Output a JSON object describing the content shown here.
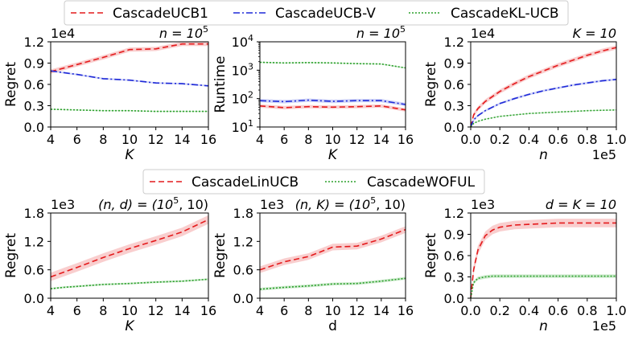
{
  "colors": {
    "red": "#e41a1c",
    "red_band": "#f4a6a6",
    "blue": "#1f2ad8",
    "blue_band": "#a9b0f0",
    "green": "#2ca02c",
    "green_band": "#a8dba8"
  },
  "legend_top": [
    {
      "label": "CascadeUCB1",
      "color_key": "red",
      "dash": "7,4"
    },
    {
      "label": "CascadeUCB-V",
      "color_key": "blue",
      "dash": "8,3,2,3"
    },
    {
      "label": "CascadeKL-UCB",
      "color_key": "green",
      "dash": "2,2"
    }
  ],
  "legend_bottom": [
    {
      "label": "CascadeLinUCB",
      "color_key": "red",
      "dash": "7,4"
    },
    {
      "label": "CascadeWOFUL",
      "color_key": "green",
      "dash": "2,2"
    }
  ],
  "chart_data": [
    {
      "type": "line",
      "title_math": [
        "n = 10",
        "5"
      ],
      "multiplier": "1e4",
      "xlabel": "K",
      "xlabel_italic": true,
      "ylabel": "Regret",
      "xlim": [
        4,
        16
      ],
      "ylim": [
        0,
        1.2
      ],
      "xticks": [
        4,
        6,
        8,
        10,
        12,
        14,
        16
      ],
      "yticks": [
        0.0,
        0.3,
        0.6,
        0.9,
        1.2
      ],
      "ytick_labels": [
        "0.0",
        "0.3",
        "0.6",
        "0.9",
        "1.2"
      ],
      "xtick_labels": [
        "4",
        "6",
        "8",
        "10",
        "12",
        "14",
        "16"
      ],
      "x": [
        4,
        6,
        8,
        10,
        12,
        14,
        16
      ],
      "series": [
        {
          "name": "CascadeUCB1",
          "color_key": "red",
          "dash": "7,4",
          "values": [
            0.78,
            0.88,
            0.98,
            1.09,
            1.1,
            1.17,
            1.17
          ],
          "band": 0.03
        },
        {
          "name": "CascadeUCB-V",
          "color_key": "blue",
          "dash": "8,3,2,3",
          "values": [
            0.79,
            0.74,
            0.68,
            0.66,
            0.62,
            0.61,
            0.58
          ],
          "band": 0.012
        },
        {
          "name": "CascadeKL-UCB",
          "color_key": "green",
          "dash": "2,2",
          "values": [
            0.25,
            0.24,
            0.23,
            0.23,
            0.22,
            0.22,
            0.22
          ],
          "band": 0.008
        }
      ]
    },
    {
      "type": "line",
      "title_math": [
        "n = 10",
        "5"
      ],
      "multiplier": "",
      "xlabel": "K",
      "xlabel_italic": true,
      "ylabel": "Runtime",
      "ylog": true,
      "xlim": [
        4,
        16
      ],
      "ylim": [
        10,
        10000
      ],
      "xticks": [
        4,
        6,
        8,
        10,
        12,
        14,
        16
      ],
      "xtick_labels": [
        "4",
        "6",
        "8",
        "10",
        "12",
        "14",
        "16"
      ],
      "yticks": [
        10,
        100,
        1000,
        10000
      ],
      "ytick_labels": [
        [
          "10",
          "1"
        ],
        [
          "10",
          "2"
        ],
        [
          "10",
          "3"
        ],
        [
          "10",
          "4"
        ]
      ],
      "x": [
        4,
        6,
        8,
        10,
        12,
        14,
        16
      ],
      "series": [
        {
          "name": "CascadeUCB1",
          "color_key": "red",
          "dash": "7,4",
          "values": [
            55,
            48,
            52,
            50,
            52,
            55,
            40
          ],
          "band_factor": 1.15
        },
        {
          "name": "CascadeUCB-V",
          "color_key": "blue",
          "dash": "8,3,2,3",
          "values": [
            85,
            78,
            88,
            80,
            85,
            85,
            62
          ],
          "band_factor": 1.15
        },
        {
          "name": "CascadeKL-UCB",
          "color_key": "green",
          "dash": "2,2",
          "values": [
            1900,
            1800,
            1850,
            1800,
            1700,
            1650,
            1200
          ],
          "band_factor": 1.05
        }
      ]
    },
    {
      "type": "line",
      "title_math": [
        "K = 10",
        ""
      ],
      "multiplier": "1e4",
      "xmultiplier": "1e5",
      "xlabel": "n",
      "xlabel_italic": true,
      "ylabel": "Regret",
      "xlim": [
        0,
        1.0
      ],
      "ylim": [
        0,
        1.2
      ],
      "xticks": [
        0.0,
        0.2,
        0.4,
        0.6,
        0.8,
        1.0
      ],
      "xtick_labels": [
        "0.0",
        "0.2",
        "0.4",
        "0.6",
        "0.8",
        "1.0"
      ],
      "yticks": [
        0.0,
        0.3,
        0.6,
        0.9,
        1.2
      ],
      "ytick_labels": [
        "0.0",
        "0.3",
        "0.6",
        "0.9",
        "1.2"
      ],
      "x": [
        0,
        0.02,
        0.05,
        0.1,
        0.2,
        0.3,
        0.4,
        0.5,
        0.6,
        0.7,
        0.8,
        0.9,
        1.0
      ],
      "series": [
        {
          "name": "CascadeUCB1",
          "color_key": "red",
          "dash": "7,4",
          "values": [
            0,
            0.17,
            0.26,
            0.36,
            0.5,
            0.61,
            0.71,
            0.79,
            0.87,
            0.94,
            1.01,
            1.07,
            1.12
          ],
          "band": 0.03
        },
        {
          "name": "CascadeUCB-V",
          "color_key": "blue",
          "dash": "8,3,2,3",
          "values": [
            0,
            0.1,
            0.16,
            0.23,
            0.33,
            0.4,
            0.46,
            0.51,
            0.55,
            0.59,
            0.62,
            0.65,
            0.67
          ],
          "band": 0.015
        },
        {
          "name": "CascadeKL-UCB",
          "color_key": "green",
          "dash": "2,2",
          "values": [
            0,
            0.05,
            0.08,
            0.11,
            0.15,
            0.17,
            0.19,
            0.2,
            0.21,
            0.22,
            0.23,
            0.235,
            0.24
          ],
          "band": 0.006
        }
      ]
    },
    {
      "type": "line",
      "title_math": [
        "(n, d) = (10",
        "5",
        ", 10)"
      ],
      "multiplier": "1e3",
      "xlabel": "K",
      "xlabel_italic": true,
      "ylabel": "Regret",
      "xlim": [
        4,
        16
      ],
      "ylim": [
        0,
        1.8
      ],
      "xticks": [
        4,
        6,
        8,
        10,
        12,
        14,
        16
      ],
      "xtick_labels": [
        "4",
        "6",
        "8",
        "10",
        "12",
        "14",
        "16"
      ],
      "yticks": [
        0.0,
        0.6,
        1.2,
        1.8
      ],
      "ytick_labels": [
        "0.0",
        "0.6",
        "1.2",
        "1.8"
      ],
      "x": [
        4,
        5,
        6,
        8,
        10,
        12,
        14,
        16
      ],
      "series": [
        {
          "name": "CascadeLinUCB",
          "color_key": "red",
          "dash": "7,4",
          "values": [
            0.45,
            0.55,
            0.65,
            0.86,
            1.05,
            1.22,
            1.4,
            1.66
          ],
          "band": 0.09
        },
        {
          "name": "CascadeWOFUL",
          "color_key": "green",
          "dash": "2,2",
          "values": [
            0.2,
            0.23,
            0.25,
            0.29,
            0.31,
            0.34,
            0.36,
            0.4
          ],
          "band": 0.02
        }
      ]
    },
    {
      "type": "line",
      "title_math": [
        "(n, K) = (10",
        "5",
        ", 10)"
      ],
      "multiplier": "1e3",
      "xlabel": "d",
      "xlabel_italic": false,
      "ylabel": "Regret",
      "xlim": [
        4,
        16
      ],
      "ylim": [
        0,
        1.8
      ],
      "xticks": [
        4,
        6,
        8,
        10,
        12,
        14,
        16
      ],
      "xtick_labels": [
        "4",
        "6",
        "8",
        "10",
        "12",
        "14",
        "16"
      ],
      "yticks": [
        0.0,
        0.6,
        1.2,
        1.8
      ],
      "ytick_labels": [
        "0.0",
        "0.6",
        "1.2",
        "1.8"
      ],
      "x": [
        4,
        6,
        8,
        10,
        12,
        14,
        16
      ],
      "series": [
        {
          "name": "CascadeLinUCB",
          "color_key": "red",
          "dash": "7,4",
          "values": [
            0.6,
            0.77,
            0.88,
            1.08,
            1.1,
            1.25,
            1.45
          ],
          "band": 0.07
        },
        {
          "name": "CascadeWOFUL",
          "color_key": "green",
          "dash": "2,2",
          "values": [
            0.19,
            0.23,
            0.26,
            0.3,
            0.31,
            0.36,
            0.42
          ],
          "band": 0.03
        }
      ]
    },
    {
      "type": "line",
      "title_math": [
        "d = K = 10",
        ""
      ],
      "multiplier": "1e3",
      "xmultiplier": "1e5",
      "xlabel": "n",
      "xlabel_italic": true,
      "ylabel": "Regret",
      "xlim": [
        0,
        1.0
      ],
      "ylim": [
        0,
        1.2
      ],
      "xticks": [
        0.0,
        0.2,
        0.4,
        0.6,
        0.8,
        1.0
      ],
      "xtick_labels": [
        "0.0",
        "0.2",
        "0.4",
        "0.6",
        "0.8",
        "1.0"
      ],
      "yticks": [
        0.0,
        0.3,
        0.6,
        0.9,
        1.2
      ],
      "ytick_labels": [
        "0.0",
        "0.3",
        "0.6",
        "0.9",
        "1.2"
      ],
      "x": [
        0,
        0.02,
        0.05,
        0.1,
        0.15,
        0.2,
        0.3,
        0.4,
        0.5,
        0.6,
        0.7,
        0.8,
        0.9,
        1.0
      ],
      "series": [
        {
          "name": "CascadeLinUCB",
          "color_key": "red",
          "dash": "7,4",
          "values": [
            0,
            0.4,
            0.68,
            0.88,
            0.96,
            1.0,
            1.03,
            1.04,
            1.05,
            1.06,
            1.06,
            1.06,
            1.06,
            1.06
          ],
          "band": 0.06
        },
        {
          "name": "CascadeWOFUL",
          "color_key": "green",
          "dash": "2,2",
          "values": [
            0,
            0.22,
            0.28,
            0.3,
            0.31,
            0.31,
            0.31,
            0.31,
            0.31,
            0.31,
            0.31,
            0.31,
            0.31,
            0.31
          ],
          "band": 0.025
        }
      ]
    }
  ]
}
